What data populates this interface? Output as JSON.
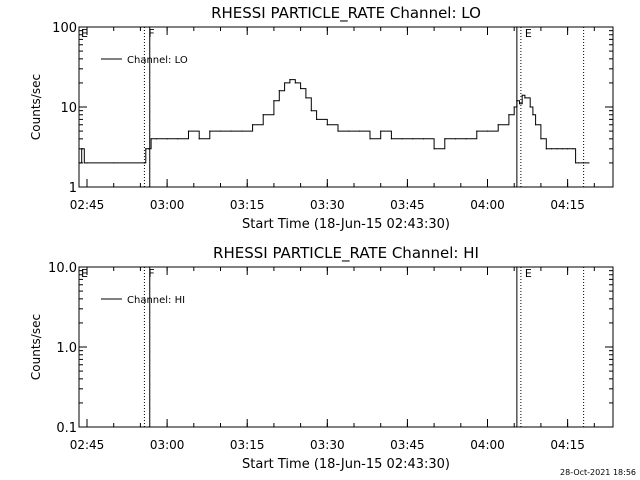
{
  "colors": {
    "background": "#ffffff",
    "foreground": "#000000"
  },
  "stamp": "28-Oct-2021 18:56",
  "chart_data": [
    {
      "type": "line",
      "title": "RHESSI PARTICLE_RATE Channel: LO",
      "xlabel": "Start Time (18-Jun-15 02:43:30)",
      "ylabel": "Counts/sec",
      "y_scale": "log",
      "ylim": [
        1,
        100
      ],
      "yticks": [
        "1",
        "10",
        "100"
      ],
      "xlim": [
        "02:43:30",
        "04:23:30"
      ],
      "xticks": [
        "02:45",
        "03:00",
        "03:15",
        "03:30",
        "03:45",
        "04:00",
        "04:15"
      ],
      "grid": false,
      "legend": {
        "position": "top-left"
      },
      "flag_lines": [
        {
          "time": "02:55:45",
          "style": "dotted",
          "label": "F"
        },
        {
          "time": "02:56:45",
          "style": "solid",
          "label": ""
        },
        {
          "time": "04:05:30",
          "style": "solid",
          "label": ""
        },
        {
          "time": "04:06:15",
          "style": "dotted",
          "label": "E"
        },
        {
          "time": "04:18:00",
          "style": "dotted",
          "label": ""
        }
      ],
      "corner_labels": [
        "E"
      ],
      "series": [
        {
          "name": "Channel: LO",
          "x": [
            "02:43:30",
            "02:44:00",
            "02:44:30",
            "02:45:00",
            "02:50:00",
            "02:55:45",
            "02:56:00",
            "02:56:30",
            "02:57:00",
            "02:58:00",
            "03:00:00",
            "03:02:00",
            "03:04:00",
            "03:06:00",
            "03:08:00",
            "03:10:00",
            "03:12:00",
            "03:14:00",
            "03:16:00",
            "03:18:00",
            "03:20:00",
            "03:21:00",
            "03:22:00",
            "03:23:00",
            "03:24:00",
            "03:25:00",
            "03:26:00",
            "03:27:00",
            "03:28:00",
            "03:30:00",
            "03:32:00",
            "03:34:00",
            "03:36:00",
            "03:38:00",
            "03:40:00",
            "03:42:00",
            "03:44:00",
            "03:46:00",
            "03:48:00",
            "03:50:00",
            "03:52:00",
            "03:54:00",
            "03:56:00",
            "03:58:00",
            "04:00:00",
            "04:02:00",
            "04:04:00",
            "04:05:00",
            "04:05:30",
            "04:06:00",
            "04:06:30",
            "04:07:00",
            "04:08:00",
            "04:08:30",
            "04:09:00",
            "04:10:00",
            "04:11:00",
            "04:12:00",
            "04:13:00",
            "04:14:00",
            "04:15:00",
            "04:16:00",
            "04:16:30",
            "04:17:00",
            "04:18:00",
            "04:19:00"
          ],
          "y": [
            2.0,
            3.0,
            2.0,
            2.0,
            2.0,
            2.0,
            3.0,
            3.0,
            4.0,
            4.0,
            4.0,
            4.0,
            5.0,
            4.0,
            5.0,
            5.0,
            5.0,
            5.0,
            6.0,
            8.0,
            12.0,
            16.0,
            20.0,
            22.0,
            20.0,
            17.0,
            13.0,
            9.0,
            7.0,
            6.0,
            5.0,
            5.0,
            5.0,
            4.0,
            5.0,
            4.0,
            4.0,
            4.0,
            4.0,
            3.0,
            4.0,
            4.0,
            4.0,
            5.0,
            5.0,
            6.0,
            8.0,
            10.0,
            12.0,
            11.0,
            14.0,
            13.0,
            10.0,
            8.0,
            6.0,
            4.0,
            3.0,
            3.0,
            3.0,
            3.0,
            3.0,
            3.0,
            2.0,
            2.0,
            2.0,
            2.0
          ]
        }
      ]
    },
    {
      "type": "line",
      "title": "RHESSI PARTICLE_RATE Channel: HI",
      "xlabel": "Start Time (18-Jun-15 02:43:30)",
      "ylabel": "Counts/sec",
      "y_scale": "log",
      "ylim": [
        0.1,
        10
      ],
      "yticks": [
        "0.1",
        "1.0",
        "10.0"
      ],
      "xlim": [
        "02:43:30",
        "04:23:30"
      ],
      "xticks": [
        "02:45",
        "03:00",
        "03:15",
        "03:30",
        "03:45",
        "04:00",
        "04:15"
      ],
      "grid": false,
      "legend": {
        "position": "top-left"
      },
      "flag_lines": [
        {
          "time": "02:55:45",
          "style": "dotted",
          "label": "F"
        },
        {
          "time": "02:56:45",
          "style": "solid",
          "label": ""
        },
        {
          "time": "04:05:30",
          "style": "solid",
          "label": ""
        },
        {
          "time": "04:06:15",
          "style": "dotted",
          "label": "E"
        },
        {
          "time": "04:18:00",
          "style": "dotted",
          "label": ""
        }
      ],
      "corner_labels": [
        "E"
      ],
      "series": [
        {
          "name": "Channel: HI",
          "x": [],
          "y": []
        }
      ]
    }
  ]
}
